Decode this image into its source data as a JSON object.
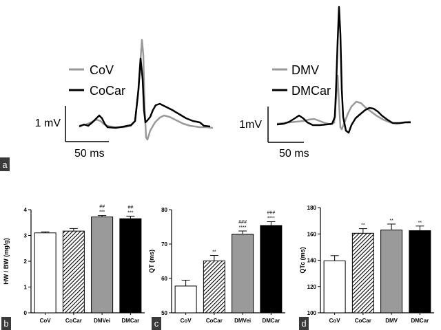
{
  "panel_labels": {
    "a": "a",
    "b": "b",
    "c": "c",
    "d": "d"
  },
  "ecg_left": {
    "legend": [
      {
        "label": "CoV",
        "color": "#999999"
      },
      {
        "label": "CoCar",
        "color": "#000000"
      }
    ],
    "scale_mv": "1 mV",
    "scale_ms": "50 ms"
  },
  "ecg_right": {
    "legend": [
      {
        "label": "DMV",
        "color": "#999999"
      },
      {
        "label": "DMCar",
        "color": "#000000"
      }
    ],
    "scale_mv": "1mV",
    "scale_ms": "50 ms"
  },
  "chart_data": [
    {
      "type": "bar",
      "panel": "b",
      "categories": [
        "CoV",
        "CoCar",
        "DMVei",
        "DMCar"
      ],
      "values": [
        3.1,
        3.17,
        3.72,
        3.65
      ],
      "errors": [
        0.04,
        0.1,
        0.05,
        0.1
      ],
      "sig_top": [
        "",
        "",
        "##",
        "##"
      ],
      "sig_bottom": [
        "",
        "",
        "***",
        "***"
      ],
      "bar_styles": [
        "white",
        "hatch",
        "gray",
        "black"
      ],
      "ylabel": "HW / BW (mg/g)",
      "ylim": [
        0,
        4
      ],
      "yticks": [
        0,
        1,
        2,
        3,
        4
      ]
    },
    {
      "type": "bar",
      "panel": "c",
      "categories": [
        "CoV",
        "CoCar",
        "DMVei",
        "DMCar"
      ],
      "values": [
        57.8,
        65.1,
        72.9,
        75.4
      ],
      "errors": [
        1.7,
        1.6,
        0.9,
        1.1
      ],
      "sig_top": [
        "",
        "",
        "###",
        "###"
      ],
      "sig_bottom": [
        "",
        "**",
        "****",
        "****"
      ],
      "bar_styles": [
        "white",
        "hatch",
        "gray",
        "black"
      ],
      "ylabel": "QT (ms)",
      "ylim": [
        50,
        80
      ],
      "yticks": [
        50,
        60,
        70,
        80
      ]
    },
    {
      "type": "bar",
      "panel": "d",
      "categories": [
        "CoV",
        "CoCar",
        "DMV",
        "DMCar"
      ],
      "values": [
        139.5,
        160.5,
        163.0,
        162.5
      ],
      "errors": [
        4,
        3.5,
        4.5,
        3.5
      ],
      "sig_top": [
        "",
        "",
        "",
        ""
      ],
      "sig_bottom": [
        "",
        "**",
        "**",
        "**"
      ],
      "bar_styles": [
        "white",
        "hatch",
        "gray",
        "black"
      ],
      "ylabel": "QTc (ms)",
      "ylim": [
        100,
        180
      ],
      "yticks": [
        100,
        120,
        140,
        160,
        180
      ]
    }
  ]
}
